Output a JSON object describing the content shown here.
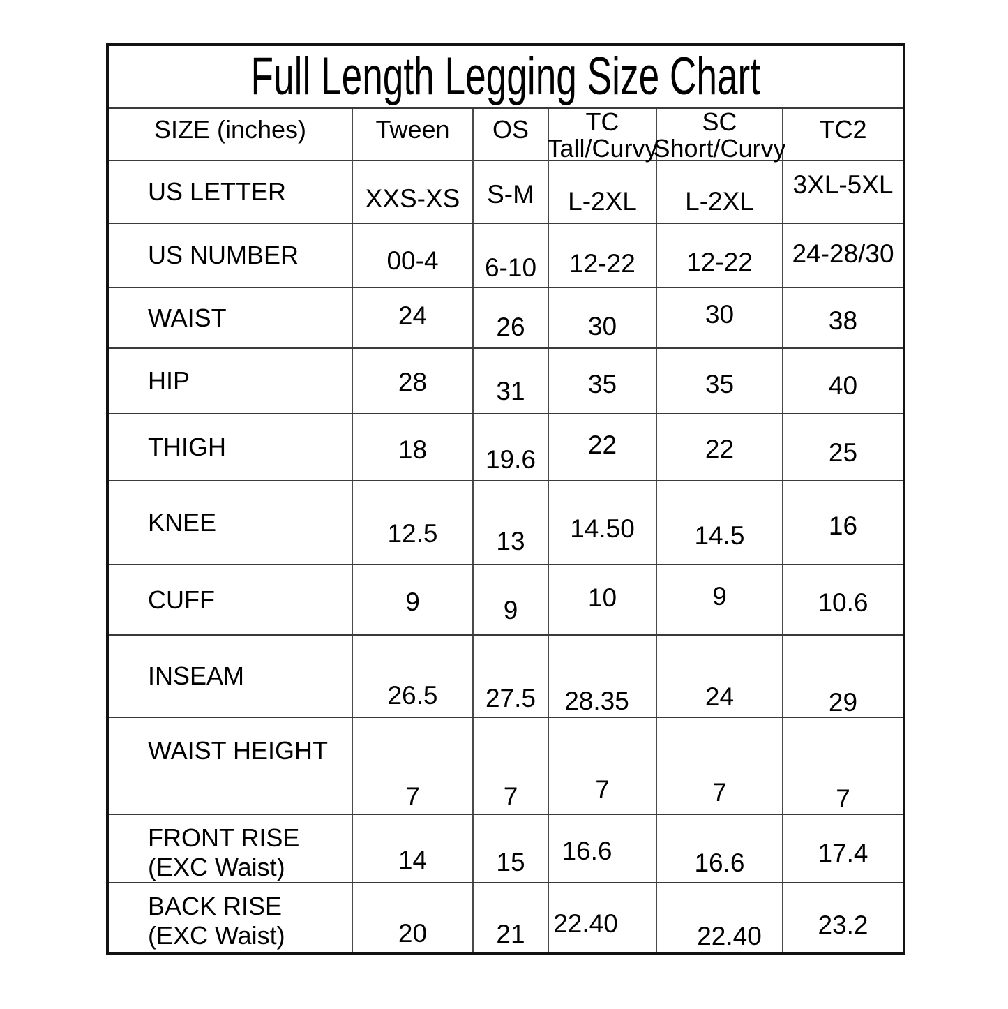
{
  "chart_data": {
    "type": "table",
    "title": "Full Length Legging Size Chart",
    "size_unit_note": "SIZE (inches)",
    "columns": [
      {
        "label": "SIZE (inches)"
      },
      {
        "label": "Tween"
      },
      {
        "label": "OS"
      },
      {
        "label": "TC",
        "sub": "Tall/Curvy"
      },
      {
        "label": "SC",
        "sub": "Short/Curvy"
      },
      {
        "label": "TC2"
      }
    ],
    "rows": [
      {
        "label": "US LETTER",
        "values": [
          "XXS-XS",
          "S-M",
          "L-2XL",
          "L-2XL",
          "3XL-5XL"
        ]
      },
      {
        "label": "US NUMBER",
        "values": [
          "00-4",
          "6-10",
          "12-22",
          "12-22",
          "24-28/30"
        ]
      },
      {
        "label": "WAIST",
        "values": [
          "24",
          "26",
          "30",
          "30",
          "38"
        ]
      },
      {
        "label": "HIP",
        "values": [
          "28",
          "31",
          "35",
          "35",
          "40"
        ]
      },
      {
        "label": "THIGH",
        "values": [
          "18",
          "19.6",
          "22",
          "22",
          "25"
        ]
      },
      {
        "label": "KNEE",
        "values": [
          "12.5",
          "13",
          "14.50",
          "14.5",
          "16"
        ]
      },
      {
        "label": "CUFF",
        "values": [
          "9",
          "9",
          "10",
          "9",
          "10.6"
        ]
      },
      {
        "label": "INSEAM",
        "values": [
          "26.5",
          "27.5",
          "28.35",
          "24",
          "29"
        ]
      },
      {
        "label": "WAIST HEIGHT",
        "values": [
          "7",
          "7",
          "7",
          "7",
          "7"
        ]
      },
      {
        "label": "FRONT RISE",
        "sub": "(EXC Waist)",
        "values": [
          "14",
          "15",
          "16.6",
          "16.6",
          "17.4"
        ]
      },
      {
        "label": "BACK RISE",
        "sub": "(EXC Waist)",
        "values": [
          "20",
          "21",
          "22.40",
          "22.40",
          "23.2"
        ]
      }
    ]
  }
}
